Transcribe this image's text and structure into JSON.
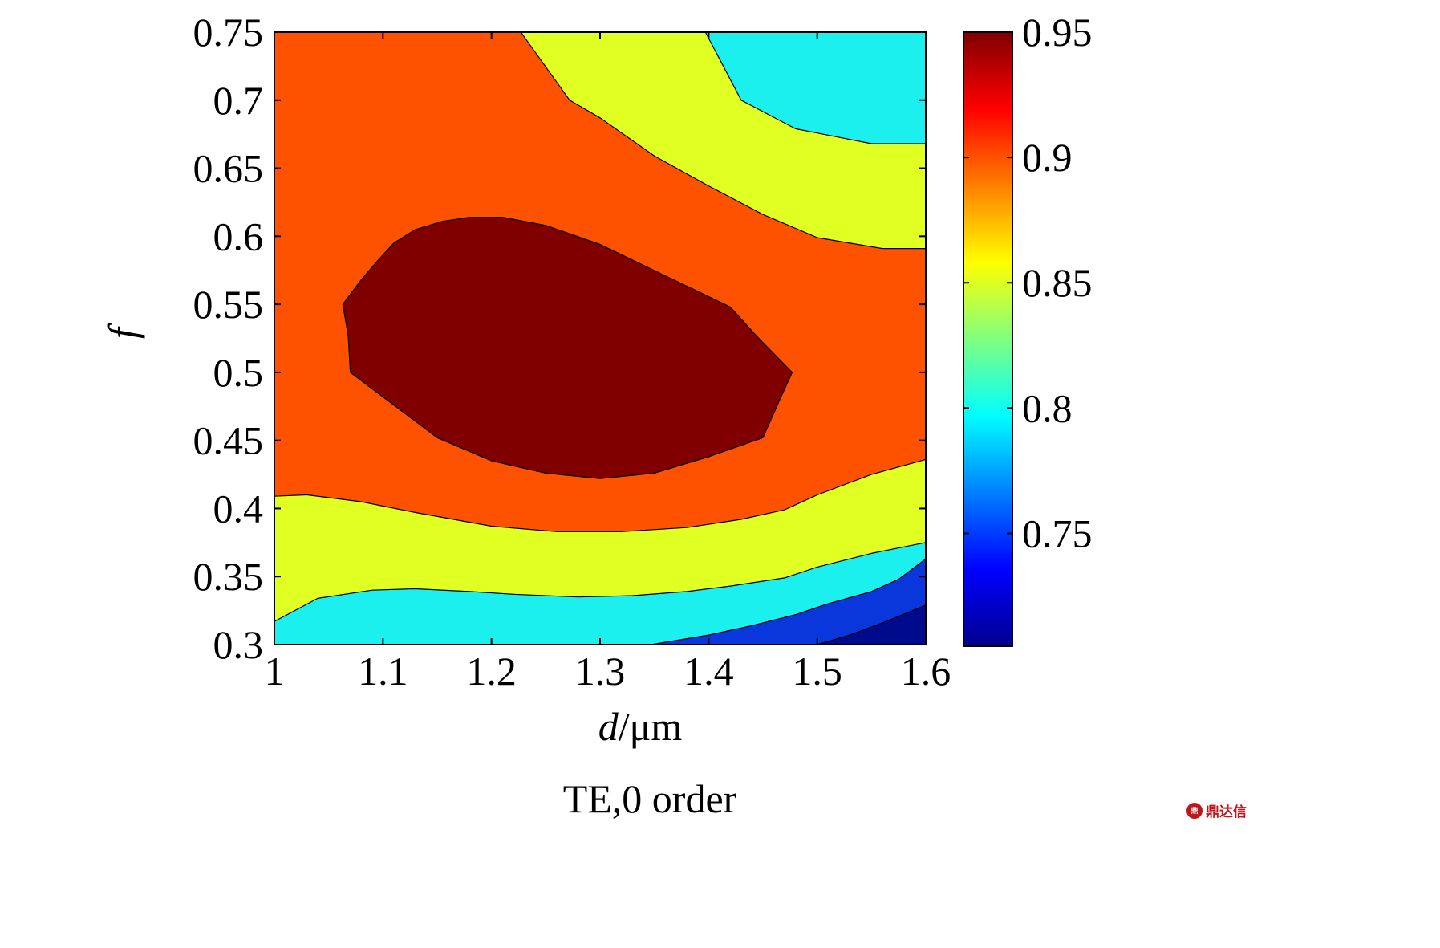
{
  "chart_data": {
    "type": "contour",
    "xlabel_italic": "d",
    "xlabel_unit": "/μm",
    "ylabel": "f",
    "caption": "TE,0 order",
    "xlim": [
      1.0,
      1.6
    ],
    "ylim": [
      0.3,
      0.75
    ],
    "x_ticks": [
      "1",
      "1.1",
      "1.2",
      "1.3",
      "1.4",
      "1.5",
      "1.6"
    ],
    "y_ticks": [
      "0.3",
      "0.35",
      "0.4",
      "0.45",
      "0.5",
      "0.55",
      "0.6",
      "0.65",
      "0.7",
      "0.75"
    ],
    "colorbar": {
      "colormap": "jet",
      "range": [
        0.705,
        0.95
      ],
      "ticks": [
        "0.75",
        "0.8",
        "0.85",
        "0.9",
        "0.95"
      ]
    },
    "levels": [
      {
        "name": "lowest",
        "color": "#000a8c"
      },
      {
        "name": "0.75",
        "color": "#0a37dc"
      },
      {
        "name": "0.80",
        "color": "#1cf0ee"
      },
      {
        "name": "0.85",
        "color": "#e0ff23"
      },
      {
        "name": "0.90",
        "color": "#ff5200"
      },
      {
        "name": "0.95",
        "color": "#800000"
      }
    ],
    "regions": [
      {
        "level": "0.85",
        "points": [
          [
            1.227,
            0.75
          ],
          [
            1.272,
            0.7
          ],
          [
            1.3,
            0.687
          ],
          [
            1.35,
            0.659
          ],
          [
            1.4,
            0.637
          ],
          [
            1.45,
            0.616
          ],
          [
            1.5,
            0.599
          ],
          [
            1.56,
            0.591
          ],
          [
            1.6,
            0.591
          ],
          [
            1.6,
            0.75
          ]
        ]
      },
      {
        "level": "0.80",
        "points": [
          [
            1.397,
            0.75
          ],
          [
            1.43,
            0.7
          ],
          [
            1.48,
            0.679
          ],
          [
            1.55,
            0.668
          ],
          [
            1.6,
            0.668
          ],
          [
            1.6,
            0.75
          ]
        ]
      },
      {
        "level": "0.85",
        "points": [
          [
            1.0,
            0.409
          ],
          [
            1.03,
            0.41
          ],
          [
            1.08,
            0.405
          ],
          [
            1.13,
            0.397
          ],
          [
            1.2,
            0.387
          ],
          [
            1.26,
            0.383
          ],
          [
            1.32,
            0.383
          ],
          [
            1.38,
            0.386
          ],
          [
            1.43,
            0.392
          ],
          [
            1.47,
            0.399
          ],
          [
            1.5,
            0.41
          ],
          [
            1.55,
            0.425
          ],
          [
            1.6,
            0.436
          ],
          [
            1.6,
            0.3
          ],
          [
            1.0,
            0.3
          ]
        ]
      },
      {
        "level": "0.80",
        "points": [
          [
            1.0,
            0.317
          ],
          [
            1.04,
            0.334
          ],
          [
            1.09,
            0.34
          ],
          [
            1.13,
            0.341
          ],
          [
            1.18,
            0.339
          ],
          [
            1.22,
            0.337
          ],
          [
            1.28,
            0.335
          ],
          [
            1.33,
            0.336
          ],
          [
            1.38,
            0.339
          ],
          [
            1.42,
            0.343
          ],
          [
            1.47,
            0.349
          ],
          [
            1.5,
            0.357
          ],
          [
            1.55,
            0.367
          ],
          [
            1.6,
            0.375
          ],
          [
            1.6,
            0.3
          ],
          [
            1.0,
            0.3
          ]
        ]
      },
      {
        "level": "0.75",
        "points": [
          [
            1.347,
            0.3
          ],
          [
            1.4,
            0.307
          ],
          [
            1.44,
            0.314
          ],
          [
            1.48,
            0.322
          ],
          [
            1.51,
            0.33
          ],
          [
            1.55,
            0.339
          ],
          [
            1.575,
            0.348
          ],
          [
            1.6,
            0.363
          ],
          [
            1.6,
            0.3
          ]
        ]
      },
      {
        "level": "lowest",
        "points": [
          [
            1.5,
            0.3
          ],
          [
            1.53,
            0.307
          ],
          [
            1.56,
            0.316
          ],
          [
            1.585,
            0.324
          ],
          [
            1.6,
            0.329
          ],
          [
            1.6,
            0.3
          ]
        ]
      },
      {
        "level": "0.95",
        "points": [
          [
            1.063,
            0.55
          ],
          [
            1.08,
            0.568
          ],
          [
            1.095,
            0.582
          ],
          [
            1.11,
            0.595
          ],
          [
            1.13,
            0.605
          ],
          [
            1.155,
            0.611
          ],
          [
            1.18,
            0.614
          ],
          [
            1.21,
            0.614
          ],
          [
            1.25,
            0.608
          ],
          [
            1.3,
            0.594
          ],
          [
            1.36,
            0.571
          ],
          [
            1.42,
            0.548
          ],
          [
            1.445,
            0.526
          ],
          [
            1.477,
            0.5
          ],
          [
            1.465,
            0.479
          ],
          [
            1.45,
            0.452
          ],
          [
            1.4,
            0.438
          ],
          [
            1.35,
            0.426
          ],
          [
            1.3,
            0.422
          ],
          [
            1.25,
            0.426
          ],
          [
            1.2,
            0.435
          ],
          [
            1.15,
            0.452
          ],
          [
            1.12,
            0.47
          ],
          [
            1.07,
            0.5
          ],
          [
            1.068,
            0.527
          ]
        ]
      }
    ]
  },
  "watermark": "鼎达信"
}
